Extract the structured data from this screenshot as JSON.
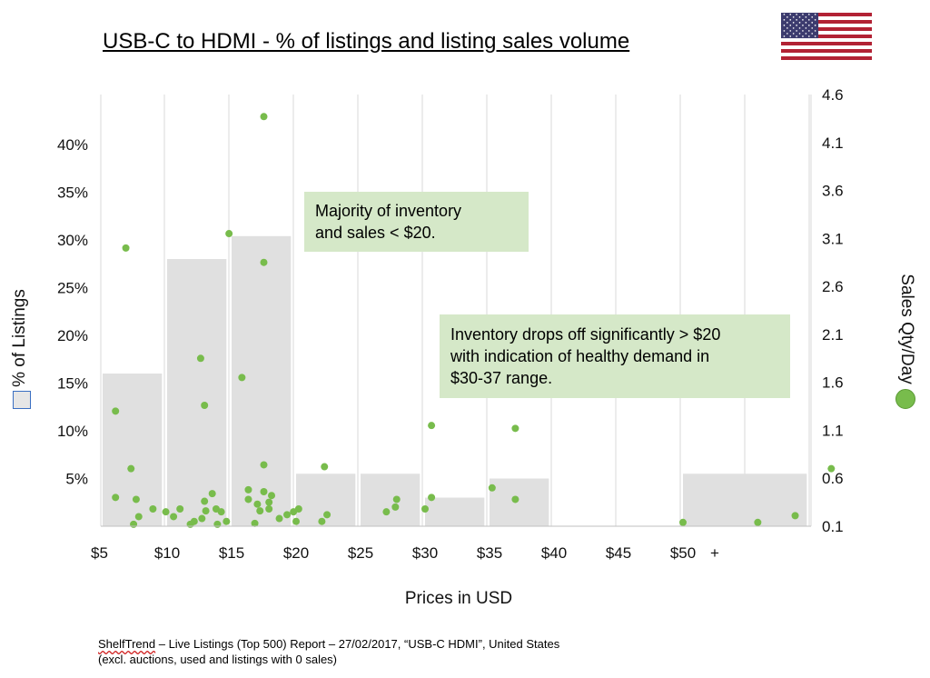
{
  "title": "USB-C to HDMI - % of listings and listing sales volume",
  "colors": {
    "bar": "#e0e0e0",
    "dot": "#78bc4c",
    "note_bg": "#d5e8c8",
    "grid": "#d9d9d9"
  },
  "icons": {
    "flag": "us-flag-icon"
  },
  "annotations": [
    "Majority of inventory\nand sales < $20.",
    "Inventory drops off significantly > $20\nwith indication of healthy demand in\n$30-37 range."
  ],
  "footnote": {
    "brand": "ShelfTrend",
    "line1_rest": " – Live Listings (Top 500) Report – 27/02/2017, “USB-C HDMI”, United States",
    "line2": "(excl. auctions, used and listings with 0 sales)"
  },
  "chart_data": {
    "type": "bar",
    "title": "USB-C to HDMI - % of listings and listing sales volume",
    "xlabel": "Prices in USD",
    "ylabel": "% of Listings",
    "y2label": "Sales Qty/Day",
    "x_tick_labels": [
      "$5",
      "$10",
      "$15",
      "$20",
      "$25",
      "$30",
      "$35",
      "$40",
      "$45",
      "$50",
      "+"
    ],
    "y_tick_labels": [
      "5%",
      "10%",
      "15%",
      "20%",
      "25%",
      "30%",
      "35%",
      "40%"
    ],
    "y2_tick_labels": [
      "0.1",
      "0.6",
      "1.1",
      "1.6",
      "2.1",
      "2.6",
      "3.1",
      "3.6",
      "4.1",
      "4.6"
    ],
    "xlim": [
      5,
      60.5
    ],
    "ylim": [
      0,
      45
    ],
    "y2lim": [
      0.1,
      4.6
    ],
    "grid": "vertical",
    "legend": "side",
    "series": [
      {
        "name": "% of Listings",
        "type": "bar",
        "axis": "left",
        "bins": [
          {
            "from": 5,
            "to": 9.6,
            "value": 16
          },
          {
            "from": 10,
            "to": 14.6,
            "value": 28
          },
          {
            "from": 15,
            "to": 19.6,
            "value": 30.4
          },
          {
            "from": 20,
            "to": 24.6,
            "value": 5.5
          },
          {
            "from": 25,
            "to": 29.6,
            "value": 5.5
          },
          {
            "from": 30,
            "to": 34.6,
            "value": 3
          },
          {
            "from": 35,
            "to": 39.6,
            "value": 5
          },
          {
            "from": 50,
            "to": 59.6,
            "value": 5.5
          }
        ]
      },
      {
        "name": "Sales Qty/Day",
        "type": "scatter",
        "axis": "right",
        "points": [
          [
            6.0,
            0.4
          ],
          [
            6.0,
            1.3
          ],
          [
            6.8,
            3.0
          ],
          [
            7.2,
            0.7
          ],
          [
            7.4,
            0.12
          ],
          [
            7.6,
            0.38
          ],
          [
            7.8,
            0.2
          ],
          [
            8.9,
            0.28
          ],
          [
            9.9,
            0.25
          ],
          [
            10.5,
            0.2
          ],
          [
            11.0,
            0.28
          ],
          [
            11.8,
            0.12
          ],
          [
            12.1,
            0.15
          ],
          [
            12.6,
            1.85
          ],
          [
            12.7,
            0.18
          ],
          [
            12.9,
            0.36
          ],
          [
            12.9,
            1.36
          ],
          [
            13.0,
            0.26
          ],
          [
            13.5,
            0.44
          ],
          [
            13.8,
            0.28
          ],
          [
            13.9,
            0.12
          ],
          [
            14.2,
            0.25
          ],
          [
            14.6,
            0.15
          ],
          [
            14.8,
            3.15
          ],
          [
            15.8,
            1.65
          ],
          [
            16.3,
            0.48
          ],
          [
            16.3,
            0.38
          ],
          [
            16.8,
            0.13
          ],
          [
            17.0,
            0.33
          ],
          [
            17.2,
            0.26
          ],
          [
            17.5,
            2.85
          ],
          [
            17.5,
            4.37
          ],
          [
            17.5,
            0.74
          ],
          [
            17.5,
            0.46
          ],
          [
            17.9,
            0.35
          ],
          [
            17.9,
            0.28
          ],
          [
            18.1,
            0.42
          ],
          [
            18.7,
            0.18
          ],
          [
            19.3,
            0.22
          ],
          [
            19.8,
            0.25
          ],
          [
            20.0,
            0.15
          ],
          [
            20.2,
            0.28
          ],
          [
            22.0,
            0.15
          ],
          [
            22.2,
            0.72
          ],
          [
            22.4,
            0.22
          ],
          [
            27.0,
            0.25
          ],
          [
            27.7,
            0.3
          ],
          [
            27.8,
            0.38
          ],
          [
            30.0,
            0.28
          ],
          [
            30.5,
            0.4
          ],
          [
            30.5,
            1.15
          ],
          [
            35.2,
            0.5
          ],
          [
            37.0,
            1.12
          ],
          [
            37.0,
            0.38
          ],
          [
            50.0,
            0.14
          ],
          [
            55.8,
            0.14
          ],
          [
            58.7,
            0.21
          ],
          [
            61.5,
            0.7
          ]
        ]
      }
    ]
  }
}
